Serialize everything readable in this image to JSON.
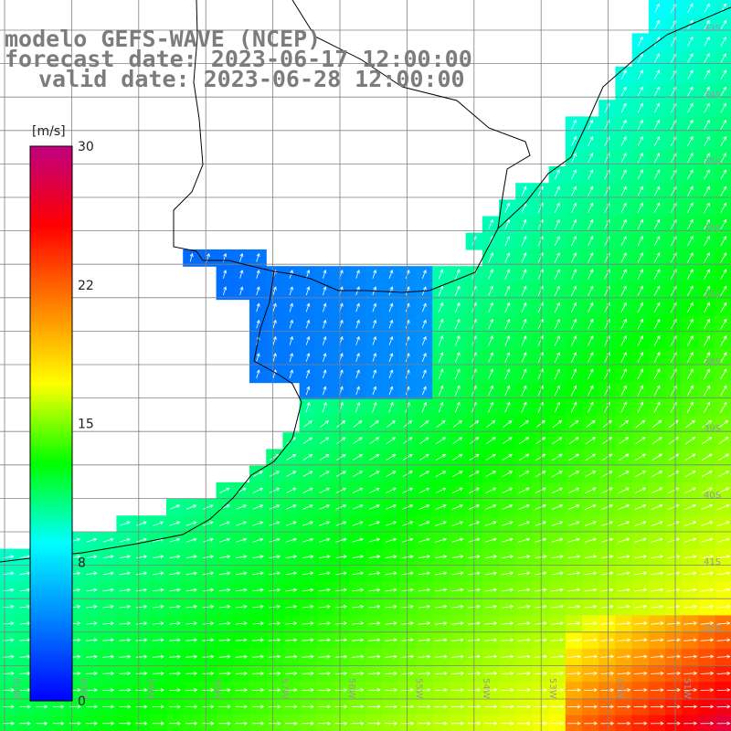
{
  "titles": {
    "model": "modelo GEFS-WAVE (NCEP)",
    "forecast": "forecast date: 2023-06-17 12:00:00",
    "valid": "valid date: 2023-06-28 12:00:00"
  },
  "colorbar": {
    "unit": "[m/s]",
    "min": 0,
    "max": 30,
    "ticks": [
      "30",
      "22",
      "15",
      "8",
      "0"
    ],
    "tick_values": [
      30,
      22.5,
      15,
      7.5,
      0
    ],
    "colors": [
      "#0000ff",
      "#0080ff",
      "#00ffff",
      "#00ff00",
      "#ffff00",
      "#ff8000",
      "#ff0000",
      "#c00080"
    ]
  },
  "grid_labels": {
    "lat": [
      "33S",
      "34S",
      "35S",
      "36S",
      "37S",
      "38S",
      "39S",
      "40S",
      "41S",
      "42S"
    ],
    "lon": [
      "61W",
      "60W",
      "59W",
      "58W",
      "57W",
      "56W",
      "55W",
      "54W",
      "53W",
      "52W",
      "51W"
    ]
  },
  "colors": {
    "coast": "#000000",
    "grid": "#808080",
    "arrow": "#ffffff",
    "land": "#ffffff"
  }
}
